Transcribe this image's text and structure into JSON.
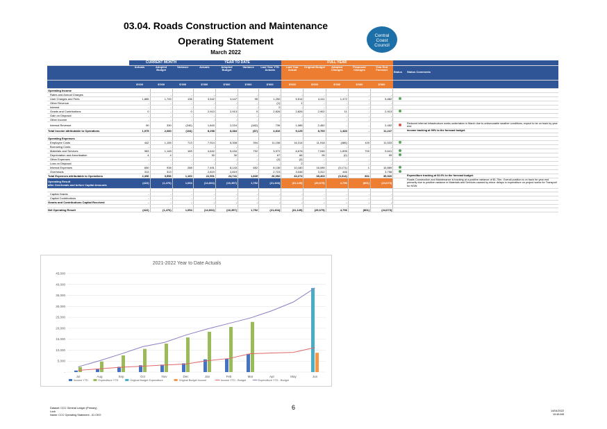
{
  "header": {
    "title": "03.04.  Roads Construction and Maintenance",
    "subtitle": "Operating Statement",
    "period": "March 2022",
    "logo_text": [
      "Central",
      "Coast",
      "Council"
    ]
  },
  "table": {
    "group_headers": {
      "current_month": "CURRENT MONTH",
      "ytd": "YEAR TO DATE",
      "full_year": "FULL YEAR"
    },
    "columns": [
      "Actuals",
      "Adopted Budget",
      "Variance",
      "Actuals",
      "Adopted Budget",
      "Variance",
      "Last Year YTD Actuals",
      "Last Year Actual",
      "Original Budget",
      "Adopted Changes",
      "Proposed Changes",
      "Year End Forecast",
      "Status",
      "Status Comments"
    ],
    "units": [
      "$'000",
      "$'000",
      "$'000",
      "$'000",
      "$'000",
      "$'000",
      "$'000",
      "$'000",
      "$'000",
      "$'000",
      "$'000",
      "$'000"
    ],
    "rows": [
      {
        "label": "Operating Income",
        "type": "section",
        "v": [
          "",
          "",
          "",
          "",
          "",
          "",
          "",
          "",
          "",
          "",
          "",
          ""
        ],
        "status": "",
        "comment": ""
      },
      {
        "label": "Rates and Annual Charges",
        "type": "item",
        "v": [
          "-",
          "-",
          "-",
          "-",
          "-",
          "-",
          "-",
          "-",
          "-",
          "-",
          "-",
          "-"
        ],
        "status": "",
        "comment": ""
      },
      {
        "label": "User Charges and Fees",
        "type": "item",
        "v": [
          "1,885",
          "1,749",
          "136",
          "3,542",
          "3,447",
          "95",
          "1,250",
          "5,514",
          "4,411",
          "1,472",
          "-",
          "5,882"
        ],
        "status": "green",
        "comment": ""
      },
      {
        "label": "Other Revenue",
        "type": "item",
        "v": [
          "-",
          "-",
          "-",
          "-",
          "-",
          "-",
          "(1)",
          "1",
          "-",
          "-",
          "-",
          "-"
        ],
        "status": "",
        "comment": ""
      },
      {
        "label": "Interest",
        "type": "item",
        "v": [
          "-",
          "-",
          "-",
          "-",
          "-",
          "-",
          "2",
          "-",
          "-",
          "-",
          "-",
          "-"
        ],
        "status": "",
        "comment": ""
      },
      {
        "label": "Grants and Contributions",
        "type": "item",
        "v": [
          "0",
          "-",
          "0",
          "2,913",
          "2,913",
          "0",
          "2,826",
          "2,826",
          "2,902",
          "11",
          "-",
          "2,913"
        ],
        "status": "green",
        "comment": ""
      },
      {
        "label": "Gain on Disposal",
        "type": "item",
        "v": [
          "-",
          "-",
          "-",
          "-",
          "-",
          "-",
          "-",
          "-",
          "-",
          "-",
          "-",
          "-"
        ],
        "status": "",
        "comment": ""
      },
      {
        "label": "Other Income",
        "type": "item",
        "v": [
          "-",
          "-",
          "-",
          "-",
          "-",
          "-",
          "-",
          "-",
          "-",
          "-",
          "-",
          "-"
        ],
        "status": "",
        "comment": ""
      },
      {
        "label": "Internal Revenue",
        "type": "item",
        "v": [
          "90",
          "330",
          "(240)",
          "1,843",
          "2,024",
          "(182)",
          "739",
          "1,085",
          "2,452",
          "-",
          "-",
          "2,452"
        ],
        "status": "red",
        "comment": "Reduced internal infrastructure works undertaken in March due to unfavourable weather conditions, expect to be on track by year end"
      },
      {
        "label": "Total Income attributable to Operations",
        "type": "total",
        "v": [
          "1,975",
          "2,080",
          "(104)",
          "8,298",
          "8,384",
          "(87)",
          "4,816",
          "9,125",
          "8,765",
          "1,483",
          "-",
          "11,247"
        ],
        "status": "",
        "comment": "Income tracking at 99% to the forecast budget."
      },
      {
        "label": "",
        "type": "blank",
        "v": [
          "",
          "",
          "",
          "",
          "",
          "",
          "",
          "",
          "",
          "",
          "",
          ""
        ],
        "status": "",
        "comment": ""
      },
      {
        "label": "Operating Expenses",
        "type": "section",
        "v": [
          "",
          "",
          "",
          "",
          "",
          "",
          "",
          "",
          "",
          "",
          "",
          ""
        ],
        "status": "",
        "comment": ""
      },
      {
        "label": "Employee Costs",
        "type": "item",
        "v": [
          "442",
          "1,155",
          "713",
          "7,914",
          "8,308",
          "394",
          "11,156",
          "16,314",
          "11,918",
          "(486)",
          "100",
          "11,533"
        ],
        "status": "green",
        "comment": ""
      },
      {
        "label": "Borrowing Costs",
        "type": "item",
        "v": [
          "-",
          "-",
          "-",
          "-",
          "-",
          "-",
          "-",
          "-",
          "-",
          "-",
          "-",
          "-"
        ],
        "status": "",
        "comment": ""
      },
      {
        "label": "Materials and Services",
        "type": "item",
        "v": [
          "983",
          "1,148",
          "165",
          "4,642",
          "5,434",
          "792",
          "3,972",
          "6,678",
          "7,046",
          "1,895",
          "700",
          "9,641"
        ],
        "status": "green",
        "comment": ""
      },
      {
        "label": "Depreciation and Amortisation",
        "type": "item",
        "v": [
          "4",
          "4",
          "-",
          "30",
          "30",
          "-",
          "67",
          "66",
          "99",
          "(0)",
          "-",
          "99"
        ],
        "status": "green",
        "comment": ""
      },
      {
        "label": "Other Expenses",
        "type": "item",
        "v": [
          "-",
          "-",
          "-",
          "-",
          "-",
          "-",
          "(2)",
          "(2)",
          "-",
          "-",
          "-",
          "-"
        ],
        "status": "",
        "comment": ""
      },
      {
        "label": "Loss on Disposal",
        "type": "item",
        "v": [
          "-",
          "-",
          "-",
          "-",
          "-",
          "-",
          "-",
          "2",
          "-",
          "-",
          "-",
          "-"
        ],
        "status": "",
        "comment": ""
      },
      {
        "label": "Internal Expenses",
        "type": "item",
        "v": [
          "650",
          "938",
          "288",
          "7,491",
          "8,143",
          "652",
          "8,136",
          "10,180",
          "16,089",
          "(5,171)",
          "1",
          "10,889"
        ],
        "status": "green",
        "comment": ""
      },
      {
        "label": "Overheads",
        "type": "item",
        "v": [
          "313",
          "313",
          "-",
          "2,819",
          "2,819",
          "-",
          "2,723",
          "3,046",
          "3,312",
          "446",
          "-",
          "3,758"
        ],
        "status": "green",
        "comment": ""
      },
      {
        "label": "Total Expenses attributable to Operations",
        "type": "total",
        "v": [
          "2,396",
          "3,556",
          "1,160",
          "22,901",
          "24,741",
          "1,839",
          "26,052",
          "40,274",
          "38,403",
          "(3,314)",
          "801",
          "35,920"
        ],
        "status": "",
        "comment": "Expenditure tracking at 92.6% to the forecast budget."
      },
      {
        "label": "Operating Result\nafter Overheads and before Capital Amounts",
        "type": "oprow",
        "v": [
          "(422)",
          "(1,476)",
          "1,054",
          "(14,604)",
          "(16,357)",
          "1,752",
          "(21,404)",
          "(31,149)",
          "(29,679)",
          "4,796",
          "(801)",
          "(24,673)"
        ],
        "status": "",
        "comment": "Roads Construction and Maintenance is tracking at a positive variance of $1.75m. Overall position is on track for year end primarily due to positive variance in Materials and Services caused by minor delays in expenditure on project works for Transport for NSW."
      },
      {
        "label": "",
        "type": "blank",
        "v": [
          "",
          "",
          "",
          "",
          "",
          "",
          "",
          "",
          "",
          "",
          "",
          ""
        ],
        "status": "",
        "comment": ""
      },
      {
        "label": "Capital Grants",
        "type": "item",
        "v": [
          "-",
          "-",
          "-",
          "-",
          "-",
          "-",
          "-",
          "-",
          "-",
          "-",
          "-",
          "-"
        ],
        "status": "",
        "comment": ""
      },
      {
        "label": "Capital Contributions",
        "type": "item",
        "v": [
          "-",
          "-",
          "-",
          "-",
          "-",
          "-",
          "-",
          "-",
          "-",
          "-",
          "-",
          "-"
        ],
        "status": "",
        "comment": ""
      },
      {
        "label": "Grants and Contributions Capital Received",
        "type": "total",
        "v": [
          "-",
          "-",
          "-",
          "-",
          "-",
          "-",
          "-",
          "-",
          "-",
          "-",
          "-",
          "-"
        ],
        "status": "",
        "comment": ""
      },
      {
        "label": "",
        "type": "blank",
        "v": [
          "",
          "",
          "",
          "",
          "",
          "",
          "",
          "",
          "",
          "",
          "",
          ""
        ],
        "status": "",
        "comment": ""
      },
      {
        "label": "Net Operating Result",
        "type": "total",
        "v": [
          "(422)",
          "(1,476)",
          "1,054",
          "(14,604)",
          "(16,357)",
          "1,752",
          "(21,404)",
          "(31,149)",
          "(29,679)",
          "4,796",
          "(801)",
          "(24,673)"
        ],
        "status": "",
        "comment": ""
      }
    ]
  },
  "chart_data": {
    "type": "bar",
    "title": "2021-2022 Year to Date Actuals",
    "categories": [
      "Jul",
      "Aug",
      "Sep",
      "Oct",
      "Nov",
      "Dec",
      "Jan",
      "Feb",
      "Mar",
      "Apr",
      "May",
      "Jun"
    ],
    "ylim": [
      0,
      45000
    ],
    "yticks": [
      "-",
      "5,000",
      "10,000",
      "15,000",
      "20,000",
      "25,000",
      "30,000",
      "35,000",
      "40,000",
      "45,000"
    ],
    "series": [
      {
        "name": "Income YTD",
        "kind": "bar",
        "color": "#4472c4",
        "values": [
          700,
          1300,
          2400,
          3100,
          3400,
          4000,
          5800,
          6000,
          8300,
          null,
          null,
          null
        ]
      },
      {
        "name": "Expenditure YTD",
        "kind": "bar",
        "color": "#9bbb59",
        "values": [
          2300,
          4800,
          7600,
          10600,
          13000,
          15800,
          18400,
          20600,
          22900,
          null,
          null,
          null
        ]
      },
      {
        "name": "Original Budget Expenditure",
        "kind": "bar",
        "color": "#4bacc6",
        "values": [
          null,
          null,
          null,
          null,
          null,
          null,
          null,
          null,
          null,
          null,
          null,
          38400
        ]
      },
      {
        "name": "Original Budget Income",
        "kind": "bar",
        "color": "#f79646",
        "values": [
          null,
          null,
          null,
          null,
          null,
          null,
          null,
          null,
          null,
          null,
          null,
          8800
        ]
      },
      {
        "name": "Income YTD - Budget",
        "kind": "line",
        "color": "#e06666",
        "values": [
          800,
          1500,
          2200,
          2700,
          3200,
          3700,
          5200,
          6200,
          8400,
          8700,
          9000,
          11200
        ]
      },
      {
        "name": "Expenditure YTD - Budget",
        "kind": "line",
        "color": "#8e7cc3",
        "values": [
          2400,
          5200,
          8300,
          11600,
          13500,
          16900,
          19700,
          22200,
          24700,
          28000,
          32000,
          38400
        ]
      }
    ]
  },
  "footer": {
    "page_number": "6",
    "left_lines": [
      "Dataset: CCC General Ledger (Primary)",
      "Lock",
      "Name: CCC Operating Statement - 01 CEO"
    ],
    "right_lines": [
      "14/04/2022",
      "10:46 AM"
    ]
  }
}
